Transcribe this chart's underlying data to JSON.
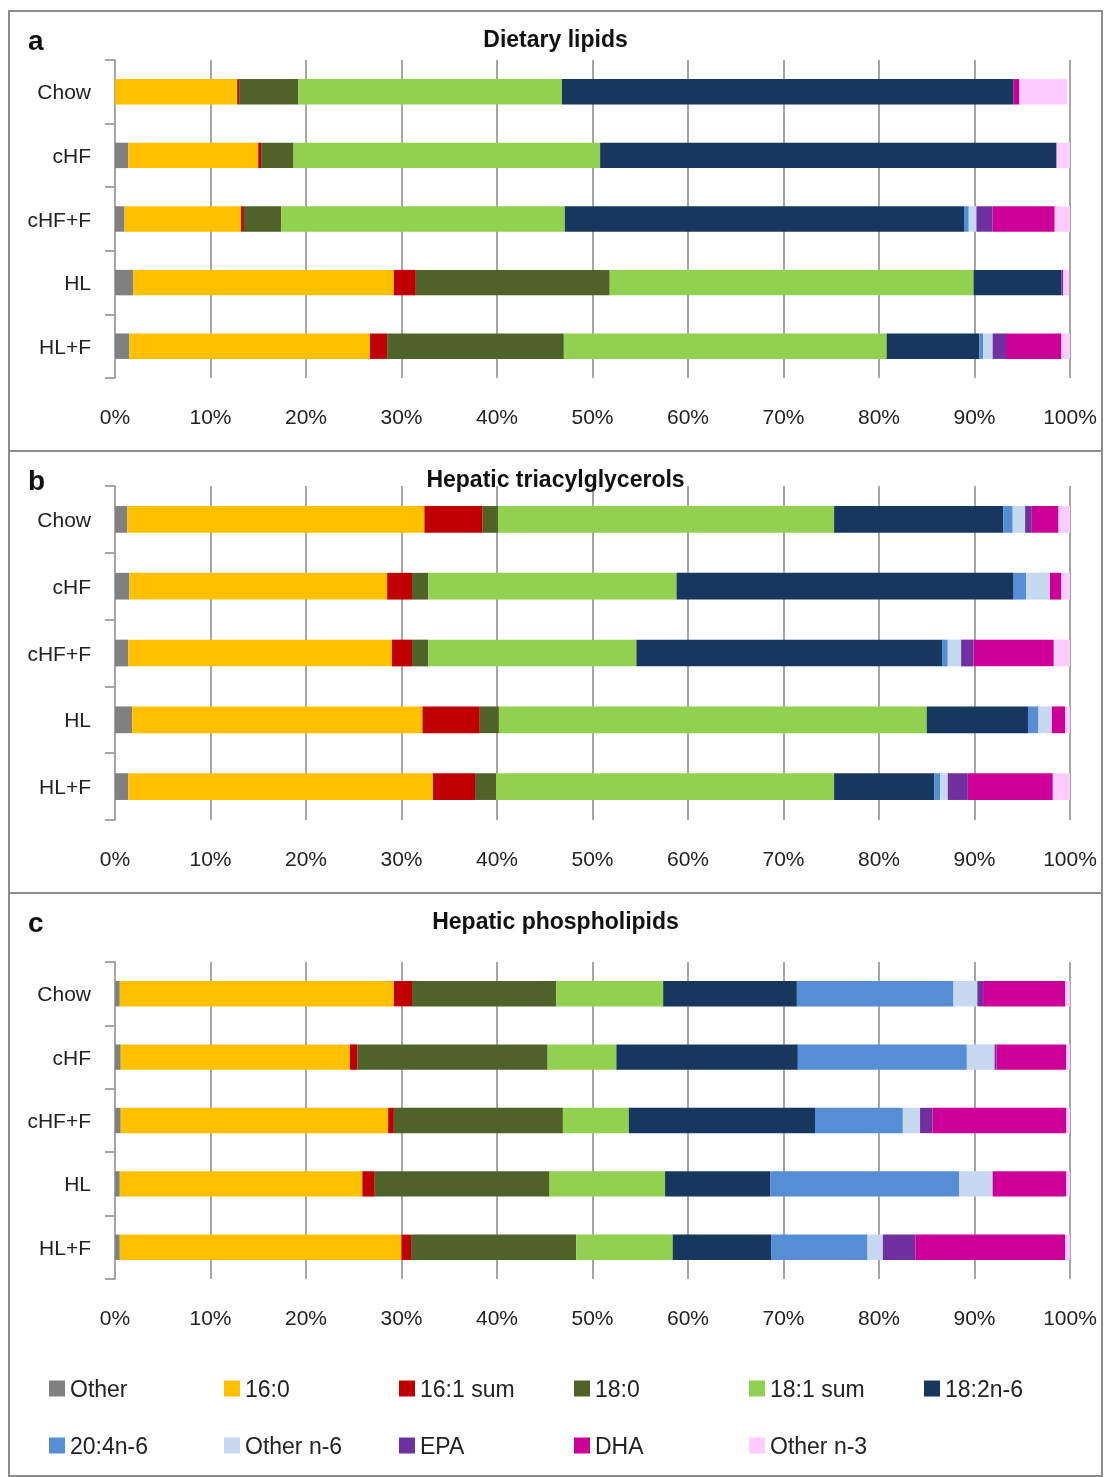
{
  "chart_data": [
    {
      "type": "bar",
      "orientation": "horizontal",
      "stacked": true,
      "title": "Dietary lipids",
      "annotations": [
        "a"
      ],
      "categories": [
        "Chow",
        "cHF",
        "cHF+F",
        "HL",
        "HL+F"
      ],
      "xlim": [
        0,
        100
      ],
      "xticks": [
        {
          "value": 0,
          "label": "0%"
        },
        {
          "value": 10,
          "label": "10%"
        },
        {
          "value": 20,
          "label": "20%"
        },
        {
          "value": 30,
          "label": "30%"
        },
        {
          "value": 40,
          "label": "40%"
        },
        {
          "value": 50,
          "label": "50%"
        },
        {
          "value": 60,
          "label": "60%"
        },
        {
          "value": 70,
          "label": "70%"
        },
        {
          "value": 80,
          "label": "80%"
        },
        {
          "value": 90,
          "label": "90%"
        },
        {
          "value": 100,
          "label": "100%"
        }
      ],
      "grid": "x",
      "legend": false,
      "series": [
        {
          "color": "#808080",
          "values": [
            null,
            1.4,
            1.0,
            1.9,
            1.5
          ]
        },
        {
          "color": "#ffc000",
          "values": [
            12.8,
            13.6,
            12.2,
            27.3,
            25.2
          ]
        },
        {
          "color": "#c00000",
          "values": [
            0.2,
            0.3,
            0.3,
            2.3,
            1.8
          ]
        },
        {
          "color": "#4f6228",
          "values": [
            6.2,
            3.4,
            3.9,
            20.3,
            18.5
          ]
        },
        {
          "color": "#92d050",
          "values": [
            27.6,
            32.1,
            29.7,
            38.1,
            33.8
          ]
        },
        {
          "color": "#17375e",
          "values": [
            47.3,
            47.8,
            41.8,
            9.2,
            9.7
          ]
        },
        {
          "color": "#558ed5",
          "values": [
            0,
            0,
            0.5,
            0,
            0.4
          ]
        },
        {
          "color": "#c6d9f1",
          "values": [
            null,
            0,
            0.8,
            null,
            1.0
          ]
        },
        {
          "color": "#7030a0",
          "values": [
            0,
            0,
            1.7,
            0.2,
            1.4
          ]
        },
        {
          "color": "#cc0099",
          "values": [
            0.6,
            0,
            6.5,
            0,
            5.8
          ]
        },
        {
          "color": "#ffccff",
          "values": [
            5.0,
            1.4,
            1.6,
            0.6,
            0.9
          ]
        }
      ]
    },
    {
      "type": "bar",
      "orientation": "horizontal",
      "stacked": true,
      "title": "Hepatic triacylglycerols",
      "annotations": [
        "b"
      ],
      "categories": [
        "Chow",
        "cHF",
        "cHF+F",
        "HL",
        "HL+F"
      ],
      "xlim": [
        0,
        100
      ],
      "xticks": [
        {
          "value": 0,
          "label": "0%"
        },
        {
          "value": 10,
          "label": "10%"
        },
        {
          "value": 20,
          "label": "20%"
        },
        {
          "value": 30,
          "label": "30%"
        },
        {
          "value": 40,
          "label": "40%"
        },
        {
          "value": 50,
          "label": "50%"
        },
        {
          "value": 60,
          "label": "60%"
        },
        {
          "value": 70,
          "label": "70%"
        },
        {
          "value": 80,
          "label": "80%"
        },
        {
          "value": 90,
          "label": "90%"
        },
        {
          "value": 100,
          "label": "100%"
        }
      ],
      "grid": "x",
      "legend": false,
      "series": [
        {
          "color": "#808080",
          "values": [
            1.3,
            1.5,
            1.4,
            1.8,
            1.4
          ]
        },
        {
          "color": "#ffc000",
          "values": [
            31.1,
            27.0,
            27.6,
            30.4,
            31.9
          ]
        },
        {
          "color": "#c00000",
          "values": [
            6.1,
            2.6,
            2.1,
            6.0,
            4.4
          ]
        },
        {
          "color": "#4f6228",
          "values": [
            1.6,
            1.7,
            1.7,
            2.0,
            2.2
          ]
        },
        {
          "color": "#92d050",
          "values": [
            35.2,
            26.0,
            21.8,
            44.8,
            35.4
          ]
        },
        {
          "color": "#17375e",
          "values": [
            17.7,
            35.3,
            32.0,
            10.6,
            10.5
          ]
        },
        {
          "color": "#558ed5",
          "values": [
            1.0,
            1.3,
            0.6,
            1.1,
            0.6
          ]
        },
        {
          "color": "#c6d9f1",
          "values": [
            1.3,
            2.5,
            1.4,
            1.4,
            0.8
          ]
        },
        {
          "color": "#7030a0",
          "values": [
            0.7,
            0,
            1.3,
            0,
            2.1
          ]
        },
        {
          "color": "#cc0099",
          "values": [
            2.8,
            1.2,
            8.4,
            1.4,
            8.9
          ]
        },
        {
          "color": "#ffccff",
          "values": [
            1.2,
            0.9,
            1.7,
            0.5,
            1.8
          ]
        }
      ]
    },
    {
      "type": "bar",
      "orientation": "horizontal",
      "stacked": true,
      "title": "Hepatic phospholipids",
      "annotations": [
        "c"
      ],
      "categories": [
        "Chow",
        "cHF",
        "cHF+F",
        "HL",
        "HL+F"
      ],
      "xlim": [
        0,
        100
      ],
      "xticks": [
        {
          "value": 0,
          "label": "0%"
        },
        {
          "value": 10,
          "label": "10%"
        },
        {
          "value": 20,
          "label": "20%"
        },
        {
          "value": 30,
          "label": "30%"
        },
        {
          "value": 40,
          "label": "40%"
        },
        {
          "value": 50,
          "label": "50%"
        },
        {
          "value": 60,
          "label": "60%"
        },
        {
          "value": 70,
          "label": "70%"
        },
        {
          "value": 80,
          "label": "80%"
        },
        {
          "value": 90,
          "label": "90%"
        },
        {
          "value": 100,
          "label": "100%"
        }
      ],
      "grid": "x",
      "legend": "bottom",
      "series": [
        {
          "name": "Other",
          "color": "#808080",
          "values": [
            0.5,
            0.6,
            0.6,
            0.5,
            0.5
          ]
        },
        {
          "name": "16:0",
          "color": "#ffc000",
          "values": [
            28.7,
            24.0,
            28.0,
            25.4,
            29.5
          ]
        },
        {
          "name": "16:1 sum",
          "color": "#c00000",
          "values": [
            1.9,
            0.8,
            0.6,
            1.3,
            1.0
          ]
        },
        {
          "name": "18:0",
          "color": "#4f6228",
          "values": [
            15.1,
            19.9,
            17.7,
            18.3,
            17.3
          ]
        },
        {
          "name": "18:1 sum",
          "color": "#92d050",
          "values": [
            11.2,
            7.2,
            6.9,
            12.1,
            10.1
          ]
        },
        {
          "name": "18:2n-6",
          "color": "#17375e",
          "values": [
            14.0,
            19.0,
            19.5,
            11.0,
            10.3
          ]
        },
        {
          "name": "20:4n-6",
          "color": "#558ed5",
          "values": [
            16.4,
            17.7,
            9.2,
            19.8,
            10.1
          ]
        },
        {
          "name": "Other n-6",
          "color": "#c6d9f1",
          "values": [
            2.5,
            2.9,
            1.8,
            3.5,
            1.6
          ]
        },
        {
          "name": "EPA",
          "color": "#7030a0",
          "values": [
            0.6,
            0.2,
            1.3,
            0,
            3.4
          ]
        },
        {
          "name": "DHA",
          "color": "#cc0099",
          "values": [
            8.6,
            7.3,
            14.0,
            7.7,
            15.7
          ]
        },
        {
          "name": "Other n-3",
          "color": "#ffccff",
          "values": [
            0.5,
            0.4,
            0.4,
            0.4,
            0.5
          ]
        }
      ]
    }
  ]
}
